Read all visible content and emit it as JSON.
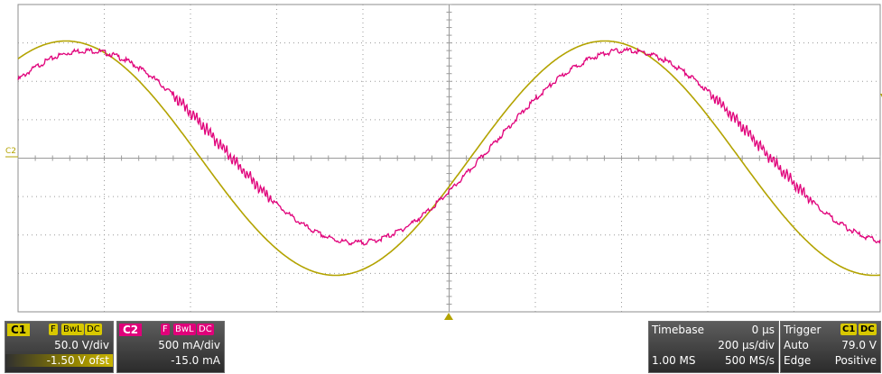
{
  "scope": {
    "c2_marker": "C2",
    "colors": {
      "ch1": "#b3a300",
      "ch2": "#e0007a",
      "grid": "#9a9a9a"
    },
    "waves": {
      "ch1": {
        "amplitude_div": 3.05,
        "cycles_shown": 1.6,
        "phase_deg": 58
      },
      "ch2": {
        "amplitude_div": 2.5,
        "cycles_shown": 1.6,
        "phase_deg": 44,
        "dc_offset_div": 0.3
      }
    }
  },
  "channel1": {
    "label": "C1",
    "flags": [
      "F",
      "BwL",
      "DC"
    ],
    "scale": "50.0 V/div",
    "offset": "-1.50 V ofst"
  },
  "channel2": {
    "label": "C2",
    "flags": [
      "F",
      "BwL",
      "DC"
    ],
    "scale": "500 mA/div",
    "offset": "-15.0 mA"
  },
  "timebase": {
    "title": "Timebase",
    "delay": "0 µs",
    "scale": "200 µs/div",
    "points": "1.00 MS",
    "rate": "500 MS/s"
  },
  "trigger": {
    "title": "Trigger",
    "source": "C1",
    "coupling": "DC",
    "mode": "Auto",
    "level": "79.0 V",
    "type": "Edge",
    "slope": "Positive"
  }
}
